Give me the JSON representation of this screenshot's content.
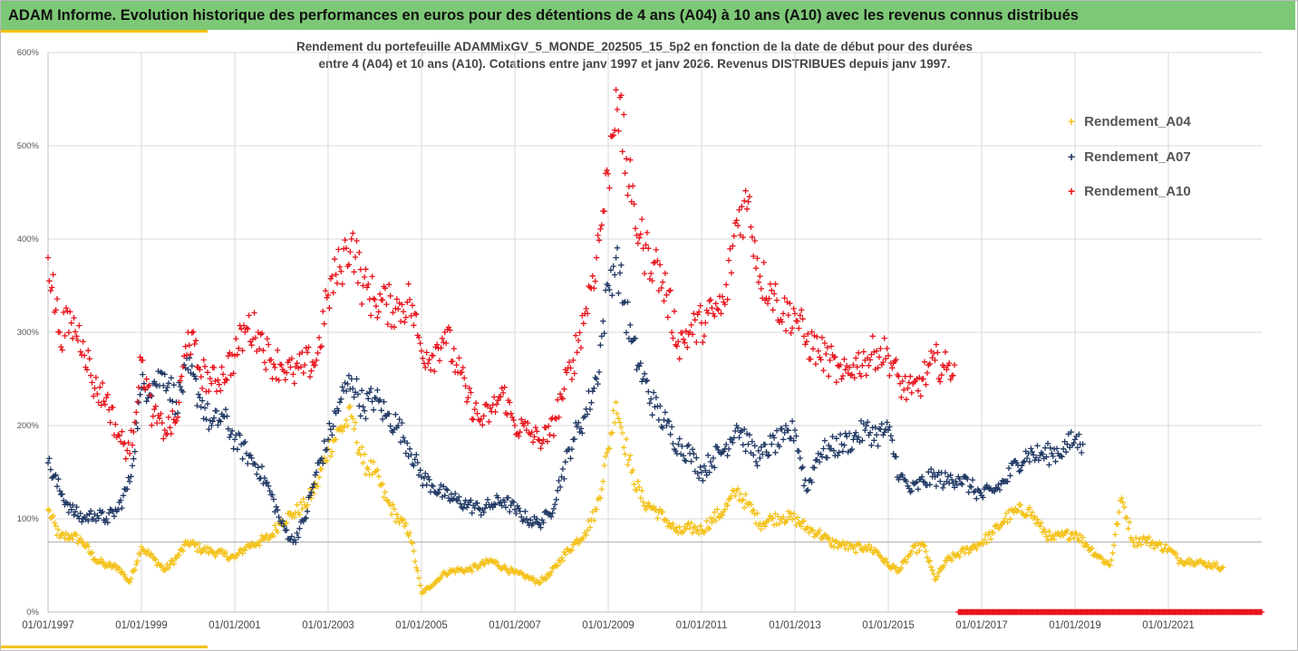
{
  "banner": {
    "title": "ADAM Informe. Evolution historique des performances en euros pour des détentions de 4 ans (A04) à 10 ans (A10) avec les revenus connus distribués"
  },
  "colors": {
    "banner": "#7dc876",
    "accent": "#f4c200",
    "A04": "#f4c21a",
    "A07": "#203864",
    "A10": "#e8141c"
  },
  "chart_data": {
    "type": "scatter",
    "title": [
      "Rendement du portefeuille ADAMMixGV_5_MONDE_202505_15_5p2 en fonction de la date de début pour des durées",
      "entre 4 (A04) et 10 ans (A10). Cotations entre janv 1997 et janv 2026. Revenus DISTRIBUES depuis janv 1997."
    ],
    "x_axis": {
      "type": "date",
      "range": [
        "1997-01-01",
        "2023-01-01"
      ],
      "tick_labels": [
        "01/01/1997",
        "01/01/1999",
        "01/01/2001",
        "01/01/2003",
        "01/01/2005",
        "01/01/2007",
        "01/01/2009",
        "01/01/2011",
        "01/01/2013",
        "01/01/2015",
        "01/01/2017",
        "01/01/2019",
        "01/01/2021"
      ]
    },
    "y_axis": {
      "range": [
        0,
        600
      ],
      "unit": "%",
      "tick_labels": [
        "0%",
        "100%",
        "200%",
        "300%",
        "400%",
        "500%",
        "600%"
      ]
    },
    "grid": "horizontal and vertical",
    "reference_line_y": 75,
    "legend_position": "top-right",
    "marker": "+",
    "series": [
      {
        "name": "Rendement_A04",
        "color": "#f4c21a",
        "points": [
          [
            "1997-01",
            110
          ],
          [
            "1997-04",
            80
          ],
          [
            "1997-07",
            82
          ],
          [
            "1997-10",
            75
          ],
          [
            "1998-01",
            57
          ],
          [
            "1998-04",
            50
          ],
          [
            "1998-07",
            48
          ],
          [
            "1998-10",
            32
          ],
          [
            "1999-01",
            70
          ],
          [
            "1999-04",
            58
          ],
          [
            "1999-07",
            45
          ],
          [
            "1999-10",
            58
          ],
          [
            "2000-01",
            75
          ],
          [
            "2000-04",
            68
          ],
          [
            "2000-07",
            65
          ],
          [
            "2000-10",
            62
          ],
          [
            "2001-01",
            58
          ],
          [
            "2001-04",
            70
          ],
          [
            "2001-07",
            75
          ],
          [
            "2001-10",
            80
          ],
          [
            "2002-01",
            98
          ],
          [
            "2002-04",
            105
          ],
          [
            "2002-07",
            115
          ],
          [
            "2002-10",
            135
          ],
          [
            "2003-01",
            175
          ],
          [
            "2003-04",
            195
          ],
          [
            "2003-07",
            210
          ],
          [
            "2003-10",
            160
          ],
          [
            "2004-01",
            150
          ],
          [
            "2004-04",
            120
          ],
          [
            "2004-07",
            100
          ],
          [
            "2004-10",
            85
          ],
          [
            "2005-01",
            20
          ],
          [
            "2005-04",
            30
          ],
          [
            "2005-07",
            42
          ],
          [
            "2005-10",
            45
          ],
          [
            "2006-01",
            45
          ],
          [
            "2006-04",
            50
          ],
          [
            "2006-07",
            55
          ],
          [
            "2006-10",
            48
          ],
          [
            "2007-01",
            42
          ],
          [
            "2007-04",
            38
          ],
          [
            "2007-07",
            32
          ],
          [
            "2007-10",
            40
          ],
          [
            "2008-01",
            58
          ],
          [
            "2008-04",
            72
          ],
          [
            "2008-07",
            85
          ],
          [
            "2008-10",
            110
          ],
          [
            "2009-01",
            175
          ],
          [
            "2009-03",
            225
          ],
          [
            "2009-07",
            150
          ],
          [
            "2009-10",
            118
          ],
          [
            "2010-01",
            110
          ],
          [
            "2010-04",
            98
          ],
          [
            "2010-07",
            85
          ],
          [
            "2010-10",
            90
          ],
          [
            "2011-01",
            88
          ],
          [
            "2011-04",
            100
          ],
          [
            "2011-07",
            110
          ],
          [
            "2011-10",
            130
          ],
          [
            "2012-01",
            115
          ],
          [
            "2012-04",
            95
          ],
          [
            "2012-07",
            100
          ],
          [
            "2012-10",
            102
          ],
          [
            "2013-01",
            100
          ],
          [
            "2013-04",
            90
          ],
          [
            "2013-07",
            85
          ],
          [
            "2013-10",
            75
          ],
          [
            "2014-01",
            72
          ],
          [
            "2014-04",
            68
          ],
          [
            "2014-07",
            70
          ],
          [
            "2014-10",
            65
          ],
          [
            "2015-01",
            50
          ],
          [
            "2015-04",
            45
          ],
          [
            "2015-07",
            65
          ],
          [
            "2015-10",
            72
          ],
          [
            "2016-01",
            35
          ],
          [
            "2016-04",
            55
          ],
          [
            "2016-07",
            62
          ],
          [
            "2016-10",
            68
          ],
          [
            "2017-01",
            75
          ],
          [
            "2017-04",
            85
          ],
          [
            "2017-07",
            100
          ],
          [
            "2017-10",
            108
          ],
          [
            "2018-01",
            110
          ],
          [
            "2018-04",
            92
          ],
          [
            "2018-07",
            78
          ],
          [
            "2018-10",
            82
          ],
          [
            "2019-01",
            85
          ],
          [
            "2019-04",
            72
          ],
          [
            "2019-07",
            60
          ],
          [
            "2019-10",
            50
          ],
          [
            "2020-01",
            122
          ],
          [
            "2020-04",
            75
          ],
          [
            "2020-07",
            78
          ],
          [
            "2020-10",
            72
          ],
          [
            "2021-01",
            68
          ],
          [
            "2021-04",
            55
          ],
          [
            "2021-07",
            55
          ],
          [
            "2021-10",
            52
          ],
          [
            "2022-01",
            50
          ],
          [
            "2022-03",
            48
          ]
        ]
      },
      {
        "name": "Rendement_A07",
        "color": "#203864",
        "points": [
          [
            "1997-01",
            160
          ],
          [
            "1997-04",
            130
          ],
          [
            "1997-07",
            110
          ],
          [
            "1997-10",
            100
          ],
          [
            "1998-01",
            105
          ],
          [
            "1998-04",
            100
          ],
          [
            "1998-07",
            110
          ],
          [
            "1998-10",
            140
          ],
          [
            "1999-01",
            240
          ],
          [
            "1999-04",
            245
          ],
          [
            "1999-07",
            255
          ],
          [
            "1999-10",
            225
          ],
          [
            "2000-01",
            260
          ],
          [
            "2000-04",
            230
          ],
          [
            "2000-07",
            200
          ],
          [
            "2000-10",
            210
          ],
          [
            "2001-01",
            185
          ],
          [
            "2001-04",
            170
          ],
          [
            "2001-07",
            155
          ],
          [
            "2001-10",
            130
          ],
          [
            "2002-01",
            95
          ],
          [
            "2002-04",
            75
          ],
          [
            "2002-07",
            100
          ],
          [
            "2002-10",
            150
          ],
          [
            "2003-01",
            185
          ],
          [
            "2003-04",
            225
          ],
          [
            "2003-07",
            250
          ],
          [
            "2003-10",
            220
          ],
          [
            "2004-01",
            230
          ],
          [
            "2004-04",
            210
          ],
          [
            "2004-07",
            200
          ],
          [
            "2004-10",
            175
          ],
          [
            "2005-01",
            145
          ],
          [
            "2005-04",
            135
          ],
          [
            "2005-07",
            125
          ],
          [
            "2005-10",
            120
          ],
          [
            "2006-01",
            115
          ],
          [
            "2006-04",
            110
          ],
          [
            "2006-07",
            115
          ],
          [
            "2006-10",
            120
          ],
          [
            "2007-01",
            110
          ],
          [
            "2007-04",
            100
          ],
          [
            "2007-07",
            95
          ],
          [
            "2007-10",
            105
          ],
          [
            "2008-01",
            145
          ],
          [
            "2008-04",
            185
          ],
          [
            "2008-07",
            210
          ],
          [
            "2008-10",
            250
          ],
          [
            "2009-01",
            350
          ],
          [
            "2009-03",
            380
          ],
          [
            "2009-07",
            290
          ],
          [
            "2009-10",
            250
          ],
          [
            "2010-01",
            220
          ],
          [
            "2010-04",
            200
          ],
          [
            "2010-07",
            180
          ],
          [
            "2010-10",
            170
          ],
          [
            "2011-01",
            150
          ],
          [
            "2011-04",
            165
          ],
          [
            "2011-07",
            175
          ],
          [
            "2011-10",
            200
          ],
          [
            "2012-01",
            180
          ],
          [
            "2012-04",
            165
          ],
          [
            "2012-07",
            180
          ],
          [
            "2012-10",
            185
          ],
          [
            "2013-01",
            195
          ],
          [
            "2013-04",
            130
          ],
          [
            "2013-07",
            170
          ],
          [
            "2013-10",
            175
          ],
          [
            "2014-01",
            180
          ],
          [
            "2014-04",
            185
          ],
          [
            "2014-07",
            195
          ],
          [
            "2014-10",
            190
          ],
          [
            "2015-01",
            195
          ],
          [
            "2015-04",
            145
          ],
          [
            "2015-07",
            130
          ],
          [
            "2015-10",
            140
          ],
          [
            "2016-01",
            145
          ],
          [
            "2016-04",
            140
          ],
          [
            "2016-07",
            145
          ],
          [
            "2016-10",
            135
          ],
          [
            "2017-01",
            125
          ],
          [
            "2017-04",
            130
          ],
          [
            "2017-07",
            140
          ],
          [
            "2017-10",
            160
          ],
          [
            "2018-01",
            170
          ],
          [
            "2018-04",
            168
          ],
          [
            "2018-07",
            170
          ],
          [
            "2018-10",
            175
          ],
          [
            "2019-01",
            185
          ],
          [
            "2019-03",
            180
          ]
        ]
      },
      {
        "name": "Rendement_A10",
        "color": "#e8141c",
        "points": [
          [
            "1997-01",
            380
          ],
          [
            "1997-04",
            300
          ],
          [
            "1997-07",
            310
          ],
          [
            "1997-10",
            290
          ],
          [
            "1998-01",
            240
          ],
          [
            "1998-04",
            230
          ],
          [
            "1998-07",
            190
          ],
          [
            "1998-10",
            170
          ],
          [
            "1999-01",
            270
          ],
          [
            "1999-04",
            210
          ],
          [
            "1999-07",
            195
          ],
          [
            "1999-10",
            205
          ],
          [
            "2000-01",
            300
          ],
          [
            "2000-04",
            260
          ],
          [
            "2000-07",
            245
          ],
          [
            "2000-10",
            255
          ],
          [
            "2001-01",
            275
          ],
          [
            "2001-04",
            305
          ],
          [
            "2001-07",
            300
          ],
          [
            "2001-10",
            270
          ],
          [
            "2002-01",
            265
          ],
          [
            "2002-04",
            255
          ],
          [
            "2002-07",
            265
          ],
          [
            "2002-10",
            270
          ],
          [
            "2003-01",
            340
          ],
          [
            "2003-04",
            370
          ],
          [
            "2003-07",
            400
          ],
          [
            "2003-10",
            350
          ],
          [
            "2004-01",
            335
          ],
          [
            "2004-04",
            330
          ],
          [
            "2004-07",
            325
          ],
          [
            "2004-10",
            335
          ],
          [
            "2005-01",
            280
          ],
          [
            "2005-04",
            275
          ],
          [
            "2005-07",
            300
          ],
          [
            "2005-10",
            265
          ],
          [
            "2006-01",
            230
          ],
          [
            "2006-04",
            205
          ],
          [
            "2006-07",
            215
          ],
          [
            "2006-10",
            235
          ],
          [
            "2007-01",
            200
          ],
          [
            "2007-04",
            195
          ],
          [
            "2007-07",
            185
          ],
          [
            "2007-10",
            190
          ],
          [
            "2008-01",
            230
          ],
          [
            "2008-04",
            270
          ],
          [
            "2008-07",
            320
          ],
          [
            "2008-10",
            380
          ],
          [
            "2009-01",
            470
          ],
          [
            "2009-03",
            560
          ],
          [
            "2009-07",
            440
          ],
          [
            "2009-10",
            390
          ],
          [
            "2010-01",
            375
          ],
          [
            "2010-04",
            340
          ],
          [
            "2010-07",
            290
          ],
          [
            "2010-10",
            300
          ],
          [
            "2011-01",
            310
          ],
          [
            "2011-04",
            320
          ],
          [
            "2011-07",
            330
          ],
          [
            "2011-10",
            420
          ],
          [
            "2012-01",
            440
          ],
          [
            "2012-04",
            360
          ],
          [
            "2012-07",
            345
          ],
          [
            "2012-10",
            320
          ],
          [
            "2013-01",
            320
          ],
          [
            "2013-04",
            290
          ],
          [
            "2013-07",
            280
          ],
          [
            "2013-10",
            270
          ],
          [
            "2014-01",
            250
          ],
          [
            "2014-04",
            265
          ],
          [
            "2014-07",
            270
          ],
          [
            "2014-10",
            280
          ],
          [
            "2015-01",
            275
          ],
          [
            "2015-04",
            245
          ],
          [
            "2015-07",
            235
          ],
          [
            "2015-10",
            250
          ],
          [
            "2016-01",
            270
          ],
          [
            "2016-04",
            260
          ],
          [
            "2016-06",
            265
          ]
        ]
      }
    ],
    "zero_band": {
      "series": "Rendement_A10",
      "from": "2016-07",
      "to": "2023-01",
      "value": 0
    }
  }
}
